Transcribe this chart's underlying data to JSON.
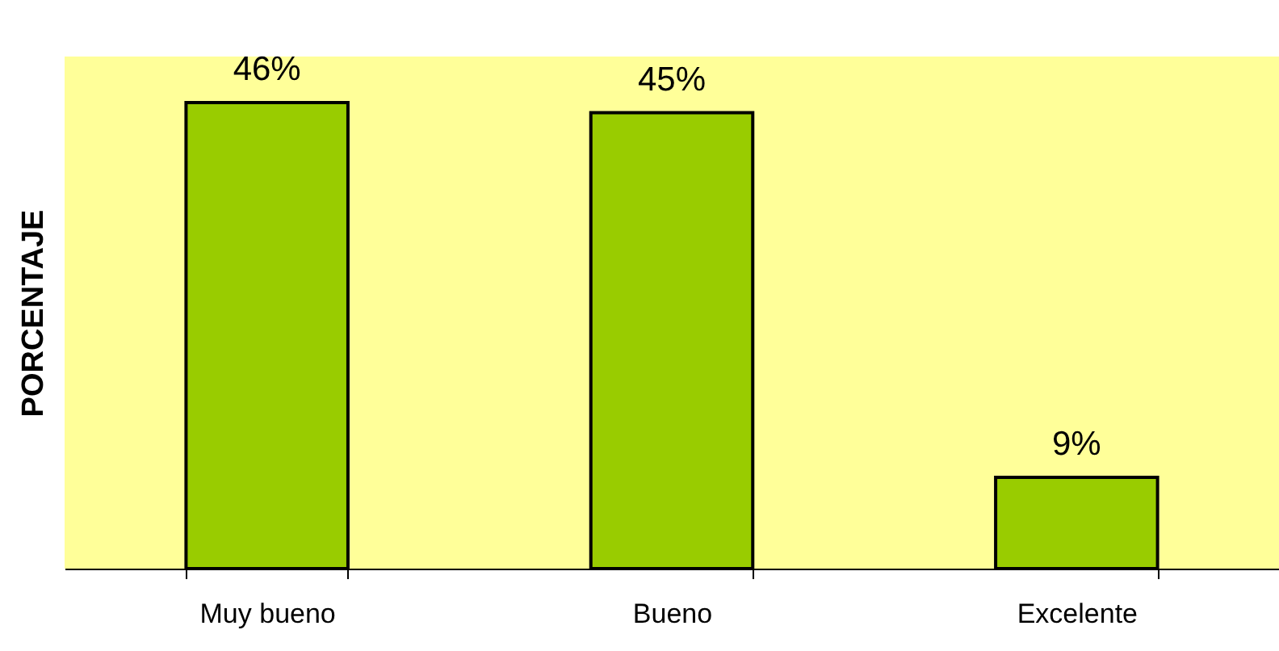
{
  "chart_data": {
    "type": "bar",
    "ylabel": "PORCENTAJE",
    "categories": [
      "Muy bueno",
      "Bueno",
      "Excelente"
    ],
    "values": [
      46,
      45,
      9
    ],
    "value_labels": [
      "46%",
      "45%",
      "9%"
    ],
    "color": "#99cc00"
  }
}
